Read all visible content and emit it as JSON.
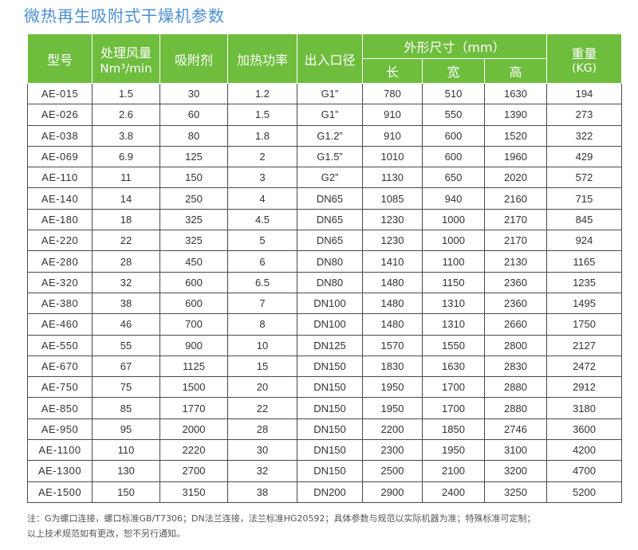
{
  "title": "微热再生吸附式干燥机参数",
  "table": {
    "headers": {
      "model": "型号",
      "airflow_line1": "处理风量",
      "airflow_line2": "Nm³/min",
      "adsorbent": "吸附剂",
      "heating_power": "加热功率",
      "port_diameter": "出入口径",
      "dimensions": "外形尺寸（mm）",
      "length": "长",
      "width": "宽",
      "height": "高",
      "weight_line1": "重量",
      "weight_line2": "(KG)"
    },
    "rows": [
      [
        "AE-015",
        "1.5",
        "30",
        "1.2",
        "G1”",
        "780",
        "510",
        "1630",
        "194"
      ],
      [
        "AE-026",
        "2.6",
        "60",
        "1.5",
        "G1”",
        "910",
        "550",
        "1390",
        "273"
      ],
      [
        "AE-038",
        "3.8",
        "80",
        "1.8",
        "G1.2”",
        "910",
        "600",
        "1520",
        "322"
      ],
      [
        "AE-069",
        "6.9",
        "125",
        "2",
        "G1.5”",
        "1010",
        "600",
        "1960",
        "429"
      ],
      [
        "AE-110",
        "11",
        "150",
        "3",
        "G2”",
        "1130",
        "650",
        "2020",
        "572"
      ],
      [
        "AE-140",
        "14",
        "250",
        "4",
        "DN65",
        "1085",
        "940",
        "2160",
        "715"
      ],
      [
        "AE-180",
        "18",
        "325",
        "4.5",
        "DN65",
        "1230",
        "1000",
        "2170",
        "845"
      ],
      [
        "AE-220",
        "22",
        "325",
        "5",
        "DN65",
        "1230",
        "1000",
        "2170",
        "924"
      ],
      [
        "AE-280",
        "28",
        "450",
        "6",
        "DN80",
        "1410",
        "1100",
        "2130",
        "1165"
      ],
      [
        "AE-320",
        "32",
        "600",
        "6.5",
        "DN80",
        "1480",
        "1150",
        "2360",
        "1235"
      ],
      [
        "AE-380",
        "38",
        "600",
        "7",
        "DN100",
        "1480",
        "1310",
        "2360",
        "1495"
      ],
      [
        "AE-460",
        "46",
        "700",
        "8",
        "DN100",
        "1480",
        "1310",
        "2660",
        "1750"
      ],
      [
        "AE-550",
        "55",
        "900",
        "10",
        "DN125",
        "1570",
        "1550",
        "2800",
        "2127"
      ],
      [
        "AE-670",
        "67",
        "1125",
        "15",
        "DN150",
        "1830",
        "1630",
        "2830",
        "2472"
      ],
      [
        "AE-750",
        "75",
        "1500",
        "20",
        "DN150",
        "1950",
        "1700",
        "2880",
        "2912"
      ],
      [
        "AE-850",
        "85",
        "1770",
        "22",
        "DN150",
        "1950",
        "1700",
        "2880",
        "3180"
      ],
      [
        "AE-950",
        "95",
        "2000",
        "28",
        "DN150",
        "2200",
        "1850",
        "2746",
        "3600"
      ],
      [
        "AE-1100",
        "110",
        "2220",
        "30",
        "DN150",
        "2300",
        "1950",
        "3100",
        "4200"
      ],
      [
        "AE-1300",
        "130",
        "2700",
        "32",
        "DN150",
        "2500",
        "2100",
        "3200",
        "4700"
      ],
      [
        "AE-1500",
        "150",
        "3150",
        "38",
        "DN200",
        "2900",
        "2400",
        "3250",
        "5200"
      ]
    ]
  },
  "notes": {
    "line1": "注：G为螺口连接，螺口标准GB/T7306；DN法兰连接，法兰标准HG20592；具体参数与规范以实际机器为准；特殊标准可定制；",
    "line2": "以上技术规范如有更改，恕不另行通知。"
  },
  "colors": {
    "header_bg": "#6ebd3d",
    "title": "#4a8fd0",
    "grid": "#4a4a4a"
  }
}
